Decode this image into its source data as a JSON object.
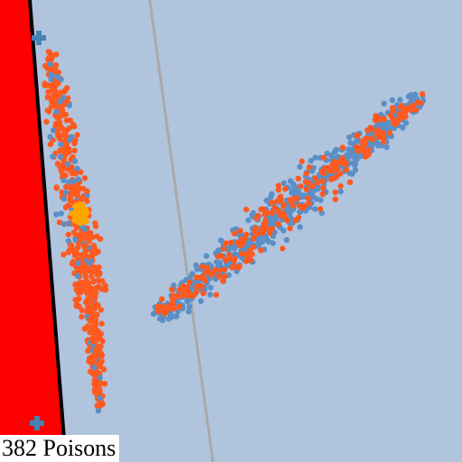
{
  "status": {
    "poison_count": "382",
    "poison_word": "Poisons"
  },
  "colors": {
    "background": "#b0c4de",
    "hazard_zone": "#ff0000",
    "hazard_edge": "#000000",
    "divider_line": "#a9a9a9",
    "player_dots": "#ff5a1f",
    "enemy_dots": "#5b8fc6",
    "marker_cross": "#4682b4",
    "highlight_cluster": "#ffa500"
  },
  "icons": {
    "marker": "plus-cross-icon"
  }
}
